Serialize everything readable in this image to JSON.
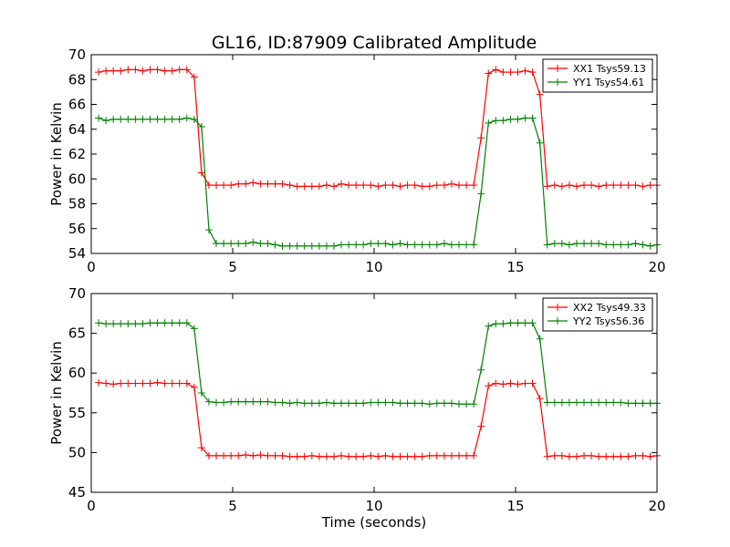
{
  "figure": {
    "title": "GL16, ID:87909 Calibrated Amplitude"
  },
  "chart_data": [
    {
      "type": "line",
      "title": "GL16, ID:87909 Calibrated Amplitude",
      "xlabel": "",
      "ylabel": "Power in Kelvin",
      "xlim": [
        0,
        20
      ],
      "ylim": [
        54,
        70
      ],
      "xticks": [
        "0",
        "5",
        "10",
        "15",
        "20"
      ],
      "yticks": [
        "54",
        "56",
        "58",
        "60",
        "62",
        "64",
        "66",
        "68",
        "70"
      ],
      "grid": false,
      "legend_position": "top-right",
      "x": [
        0.26,
        0.52,
        0.78,
        1.04,
        1.3,
        1.56,
        1.82,
        2.08,
        2.34,
        2.6,
        2.86,
        3.12,
        3.38,
        3.64,
        3.9,
        4.16,
        4.42,
        4.68,
        4.94,
        5.2,
        5.46,
        5.72,
        5.98,
        6.24,
        6.5,
        6.76,
        7.02,
        7.28,
        7.54,
        7.8,
        8.06,
        8.32,
        8.58,
        8.84,
        9.1,
        9.36,
        9.62,
        9.88,
        10.14,
        10.4,
        10.66,
        10.92,
        11.18,
        11.44,
        11.7,
        11.96,
        12.22,
        12.48,
        12.74,
        13.0,
        13.26,
        13.52,
        13.78,
        14.04,
        14.3,
        14.56,
        14.82,
        15.08,
        15.34,
        15.6,
        15.86,
        16.12,
        16.38,
        16.64,
        16.9,
        17.16,
        17.42,
        17.68,
        17.94,
        18.2,
        18.46,
        18.72,
        18.98,
        19.24,
        19.5,
        19.76,
        20.0
      ],
      "series": [
        {
          "name": "XX1 Tsys59.13",
          "color": "#ff0000",
          "values": [
            68.6,
            68.7,
            68.7,
            68.7,
            68.8,
            68.8,
            68.7,
            68.8,
            68.8,
            68.7,
            68.7,
            68.8,
            68.8,
            68.2,
            60.5,
            59.5,
            59.5,
            59.5,
            59.5,
            59.6,
            59.6,
            59.7,
            59.6,
            59.6,
            59.6,
            59.6,
            59.5,
            59.4,
            59.4,
            59.4,
            59.4,
            59.5,
            59.4,
            59.6,
            59.5,
            59.5,
            59.5,
            59.5,
            59.4,
            59.5,
            59.5,
            59.4,
            59.5,
            59.5,
            59.4,
            59.4,
            59.5,
            59.5,
            59.6,
            59.5,
            59.5,
            59.5,
            63.3,
            68.5,
            68.8,
            68.6,
            68.6,
            68.6,
            68.7,
            68.6,
            66.8,
            59.4,
            59.5,
            59.4,
            59.5,
            59.4,
            59.5,
            59.5,
            59.4,
            59.5,
            59.5,
            59.5,
            59.5,
            59.5,
            59.4,
            59.5,
            59.5
          ]
        },
        {
          "name": "YY1 Tsys54.61",
          "color": "#008000",
          "values": [
            64.9,
            64.7,
            64.8,
            64.8,
            64.8,
            64.8,
            64.8,
            64.8,
            64.8,
            64.8,
            64.8,
            64.8,
            64.9,
            64.8,
            64.2,
            55.9,
            54.8,
            54.8,
            54.8,
            54.8,
            54.8,
            54.9,
            54.8,
            54.8,
            54.7,
            54.6,
            54.6,
            54.6,
            54.6,
            54.6,
            54.6,
            54.6,
            54.6,
            54.7,
            54.7,
            54.7,
            54.7,
            54.8,
            54.8,
            54.8,
            54.7,
            54.8,
            54.7,
            54.7,
            54.7,
            54.7,
            54.7,
            54.8,
            54.7,
            54.7,
            54.7,
            54.7,
            58.8,
            64.5,
            64.7,
            64.7,
            64.8,
            64.8,
            64.9,
            64.9,
            62.9,
            54.7,
            54.8,
            54.8,
            54.7,
            54.8,
            54.8,
            54.8,
            54.8,
            54.7,
            54.7,
            54.7,
            54.7,
            54.8,
            54.7,
            54.6,
            54.7
          ]
        }
      ]
    },
    {
      "type": "line",
      "title": "",
      "xlabel": "Time (seconds)",
      "ylabel": "Power in Kelvin",
      "xlim": [
        0,
        20
      ],
      "ylim": [
        45,
        70
      ],
      "xticks": [
        "0",
        "5",
        "10",
        "15",
        "20"
      ],
      "yticks": [
        "45",
        "50",
        "55",
        "60",
        "65",
        "70"
      ],
      "grid": false,
      "legend_position": "top-right",
      "x": [
        0.26,
        0.52,
        0.78,
        1.04,
        1.3,
        1.56,
        1.82,
        2.08,
        2.34,
        2.6,
        2.86,
        3.12,
        3.38,
        3.64,
        3.9,
        4.16,
        4.42,
        4.68,
        4.94,
        5.2,
        5.46,
        5.72,
        5.98,
        6.24,
        6.5,
        6.76,
        7.02,
        7.28,
        7.54,
        7.8,
        8.06,
        8.32,
        8.58,
        8.84,
        9.1,
        9.36,
        9.62,
        9.88,
        10.14,
        10.4,
        10.66,
        10.92,
        11.18,
        11.44,
        11.7,
        11.96,
        12.22,
        12.48,
        12.74,
        13.0,
        13.26,
        13.52,
        13.78,
        14.04,
        14.3,
        14.56,
        14.82,
        15.08,
        15.34,
        15.6,
        15.86,
        16.12,
        16.38,
        16.64,
        16.9,
        17.16,
        17.42,
        17.68,
        17.94,
        18.2,
        18.46,
        18.72,
        18.98,
        19.24,
        19.5,
        19.76,
        20.0
      ],
      "series": [
        {
          "name": "XX2 Tsys49.33",
          "color": "#ff0000",
          "values": [
            58.8,
            58.7,
            58.6,
            58.7,
            58.7,
            58.7,
            58.7,
            58.7,
            58.8,
            58.7,
            58.7,
            58.7,
            58.7,
            58.2,
            50.6,
            49.6,
            49.6,
            49.6,
            49.6,
            49.6,
            49.7,
            49.6,
            49.7,
            49.6,
            49.6,
            49.6,
            49.5,
            49.5,
            49.5,
            49.6,
            49.5,
            49.5,
            49.5,
            49.6,
            49.5,
            49.5,
            49.5,
            49.6,
            49.5,
            49.6,
            49.5,
            49.5,
            49.5,
            49.5,
            49.5,
            49.6,
            49.6,
            49.6,
            49.6,
            49.6,
            49.6,
            49.6,
            53.3,
            58.4,
            58.7,
            58.6,
            58.7,
            58.6,
            58.7,
            58.7,
            56.8,
            49.5,
            49.6,
            49.6,
            49.5,
            49.5,
            49.6,
            49.6,
            49.5,
            49.5,
            49.5,
            49.5,
            49.5,
            49.6,
            49.6,
            49.5,
            49.6
          ]
        },
        {
          "name": "YY2 Tsys56.36",
          "color": "#008000",
          "values": [
            66.3,
            66.2,
            66.2,
            66.2,
            66.2,
            66.2,
            66.2,
            66.3,
            66.3,
            66.3,
            66.3,
            66.3,
            66.3,
            65.6,
            57.5,
            56.4,
            56.3,
            56.3,
            56.4,
            56.4,
            56.4,
            56.4,
            56.4,
            56.4,
            56.3,
            56.3,
            56.2,
            56.3,
            56.2,
            56.2,
            56.2,
            56.3,
            56.2,
            56.2,
            56.2,
            56.2,
            56.2,
            56.3,
            56.3,
            56.3,
            56.3,
            56.2,
            56.2,
            56.2,
            56.2,
            56.1,
            56.2,
            56.2,
            56.2,
            56.1,
            56.1,
            56.1,
            60.4,
            65.9,
            66.2,
            66.2,
            66.3,
            66.3,
            66.3,
            66.3,
            64.3,
            56.3,
            56.3,
            56.3,
            56.3,
            56.3,
            56.3,
            56.3,
            56.3,
            56.3,
            56.3,
            56.3,
            56.2,
            56.2,
            56.2,
            56.2,
            56.2
          ]
        }
      ]
    }
  ]
}
